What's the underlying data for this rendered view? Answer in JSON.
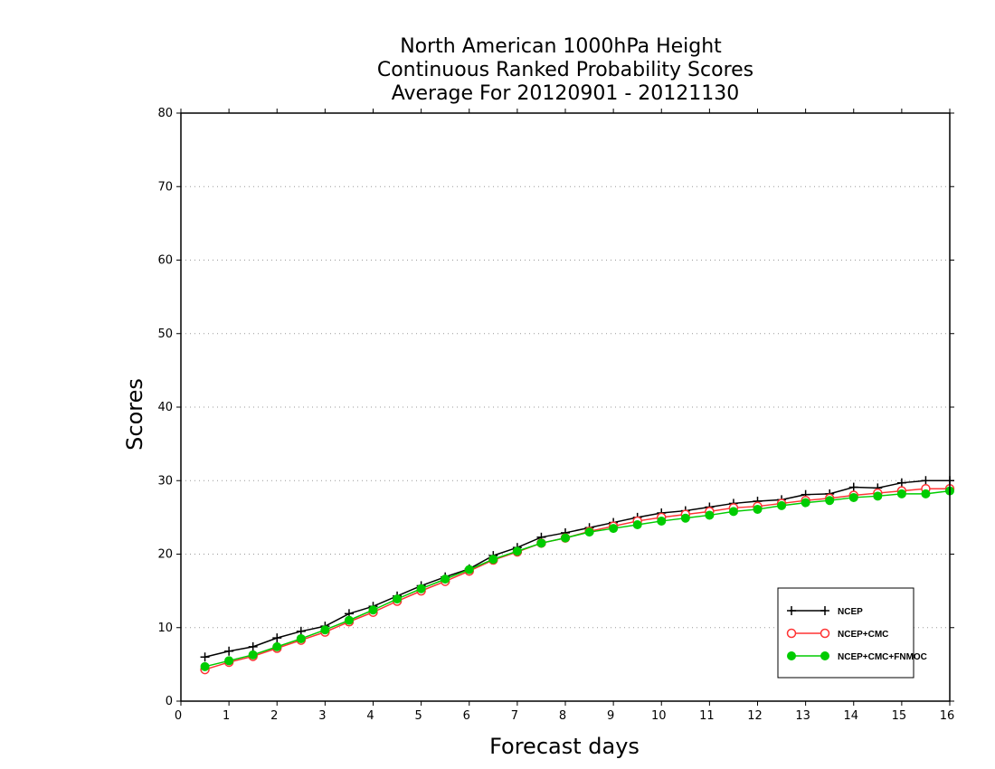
{
  "chart_data": {
    "type": "line",
    "title_lines": [
      "North American 1000hPa Height",
      "Continuous Ranked Probability Scores",
      "Average For 20120901 - 20121130"
    ],
    "xlabel": "Forecast days",
    "ylabel": "Scores",
    "xlim": [
      0,
      16
    ],
    "ylim": [
      0,
      80
    ],
    "xticks": [
      "0",
      "1",
      "2",
      "3",
      "4",
      "5",
      "6",
      "7",
      "8",
      "9",
      "10",
      "11",
      "12",
      "13",
      "14",
      "15",
      "16"
    ],
    "yticks": [
      "0",
      "10",
      "20",
      "30",
      "40",
      "50",
      "60",
      "70",
      "80"
    ],
    "grid": "horizontal dotted",
    "legend_position": "bottom-right",
    "x": [
      0.5,
      1,
      1.5,
      2,
      2.5,
      3,
      3.5,
      4,
      4.5,
      5,
      5.5,
      6,
      6.5,
      7,
      7.5,
      8,
      8.5,
      9,
      9.5,
      10,
      10.5,
      11,
      11.5,
      12,
      12.5,
      13,
      13.5,
      14,
      14.5,
      15,
      15.5,
      16
    ],
    "series": [
      {
        "name": "NCEP",
        "color": "#000000",
        "marker": "plus",
        "values": [
          6.0,
          6.8,
          7.4,
          8.6,
          9.5,
          10.2,
          11.9,
          12.9,
          14.3,
          15.7,
          16.9,
          18.0,
          19.8,
          20.9,
          22.3,
          22.9,
          23.6,
          24.3,
          25.0,
          25.6,
          25.9,
          26.4,
          26.9,
          27.2,
          27.4,
          28.1,
          28.2,
          29.1,
          29.0,
          29.7,
          30.0,
          30.0
        ]
      },
      {
        "name": "NCEP+CMC",
        "color": "#ff3333",
        "marker": "open-circle",
        "values": [
          4.3,
          5.3,
          6.1,
          7.2,
          8.3,
          9.4,
          10.8,
          12.1,
          13.6,
          15.0,
          16.3,
          17.7,
          19.2,
          20.3,
          21.5,
          22.2,
          23.1,
          23.8,
          24.5,
          25.0,
          25.4,
          25.8,
          26.3,
          26.5,
          26.9,
          27.3,
          27.6,
          28.0,
          28.3,
          28.6,
          28.9,
          28.9
        ]
      },
      {
        "name": "NCEP+CMC+FNMOC",
        "color": "#00cc00",
        "marker": "filled-circle",
        "values": [
          4.7,
          5.5,
          6.3,
          7.4,
          8.5,
          9.7,
          11.0,
          12.4,
          13.9,
          15.3,
          16.6,
          17.9,
          19.3,
          20.4,
          21.5,
          22.2,
          23.0,
          23.5,
          24.0,
          24.5,
          24.9,
          25.3,
          25.8,
          26.1,
          26.6,
          27.0,
          27.3,
          27.7,
          27.9,
          28.2,
          28.2,
          28.6
        ]
      }
    ]
  }
}
